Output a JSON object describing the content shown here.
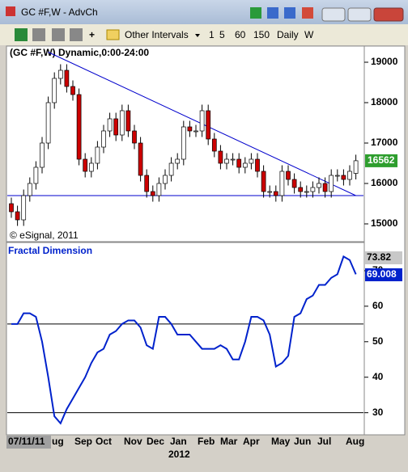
{
  "window": {
    "title": "GC #F,W - AdvCh"
  },
  "toolbar": {
    "items": [
      "Other Intervals",
      "1",
      "5",
      "60",
      "150",
      "Daily",
      "W"
    ]
  },
  "chart_data": [
    {
      "type": "candlestick",
      "title": "(GC #F,W) Dynamic,0:00-24:00",
      "annotation": "© eSignal, 2011",
      "open": [
        15500,
        15300,
        15100,
        15700,
        16000,
        16400,
        17000,
        18000,
        18600,
        18800,
        18400,
        18200,
        16600,
        16300,
        16500,
        16900,
        17300,
        17600,
        17200,
        17800,
        17300,
        17000,
        16200,
        15800,
        15700,
        16000,
        16200,
        16500,
        16600,
        17400,
        17300,
        17300,
        17800,
        17100,
        16800,
        16500,
        16600,
        16600,
        16400,
        16500,
        16600,
        16300,
        15800,
        15800,
        15700,
        16300,
        16100,
        15900,
        15800,
        15800,
        15900,
        16000,
        15800,
        16200,
        16200,
        16100,
        16250
      ],
      "high": [
        15650,
        15450,
        15850,
        16150,
        16550,
        17150,
        18150,
        18750,
        18950,
        18950,
        18550,
        18350,
        16750,
        16650,
        17050,
        17450,
        17750,
        17750,
        17950,
        17950,
        17450,
        17150,
        16350,
        15950,
        16150,
        16350,
        16650,
        16750,
        17550,
        17550,
        17450,
        17950,
        17950,
        17250,
        16950,
        16750,
        16750,
        16750,
        16650,
        16750,
        16750,
        16450,
        15950,
        15950,
        16450,
        16450,
        16250,
        16050,
        15950,
        16050,
        16150,
        16150,
        16350,
        16350,
        16350,
        16450,
        16712
      ],
      "low": [
        15150,
        14950,
        14950,
        15550,
        15850,
        16250,
        16850,
        17850,
        18450,
        18250,
        18050,
        16450,
        16150,
        16150,
        16350,
        16750,
        17150,
        17050,
        17050,
        17150,
        16850,
        16050,
        15650,
        15550,
        15550,
        15850,
        16050,
        16350,
        16450,
        17150,
        17150,
        17150,
        16950,
        16650,
        16350,
        16350,
        16450,
        16250,
        16250,
        16350,
        16150,
        15650,
        15650,
        15550,
        15550,
        15950,
        15750,
        15650,
        15650,
        15650,
        15750,
        15650,
        15650,
        16050,
        15950,
        15950,
        16100
      ],
      "close": [
        15300,
        15100,
        15700,
        16000,
        16400,
        17000,
        18000,
        18600,
        18800,
        18400,
        18200,
        16600,
        16300,
        16500,
        16900,
        17300,
        17600,
        17200,
        17800,
        17300,
        17000,
        16200,
        15800,
        15700,
        16000,
        16200,
        16500,
        16600,
        17400,
        17300,
        17300,
        17800,
        17100,
        16800,
        16500,
        16600,
        16600,
        16400,
        16500,
        16600,
        16300,
        15800,
        15800,
        15700,
        16300,
        16100,
        15900,
        15800,
        15800,
        15900,
        16000,
        15800,
        16200,
        16200,
        16100,
        16300,
        16562
      ],
      "up_color": "#ffffff",
      "down_color": "#cc0000",
      "last_label": "16562",
      "last_color": "#2e9e2e",
      "trendline": {
        "x": [
          6,
          56
        ],
        "y": [
          19250,
          15700
        ]
      },
      "support": 15700,
      "line_color": "#0000cc",
      "ylim": [
        14580,
        19380
      ],
      "yticks": [
        15000,
        16000,
        17000,
        18000,
        19000
      ]
    },
    {
      "type": "line",
      "title": "Fractal Dimension",
      "color": "#0022cc",
      "values": [
        55,
        55,
        58,
        58,
        57,
        50,
        40,
        29,
        27,
        31,
        34,
        37,
        40,
        44,
        47,
        48,
        52,
        53,
        55,
        56,
        56,
        54,
        49,
        48,
        57,
        57,
        55,
        52,
        52,
        52,
        50,
        48,
        48,
        48,
        49,
        48,
        45,
        45,
        50,
        57,
        57,
        56,
        52,
        43,
        44,
        46,
        57,
        58,
        62,
        63,
        66,
        66,
        68,
        69,
        74,
        73,
        69
      ],
      "last_labels": [
        "73.82",
        "69.008"
      ],
      "levels": [
        55,
        30
      ],
      "ylim": [
        24,
        77.5
      ],
      "yticks": [
        30,
        40,
        50,
        60,
        70
      ]
    }
  ],
  "x_axis": {
    "start": "07/11/11",
    "months": [
      "ug",
      "Sep",
      "Oct",
      "Nov",
      "Dec",
      "Jan",
      "Feb",
      "Mar",
      "Apr",
      "May",
      "Jun",
      "Jul",
      "Aug"
    ],
    "year": "2012"
  }
}
